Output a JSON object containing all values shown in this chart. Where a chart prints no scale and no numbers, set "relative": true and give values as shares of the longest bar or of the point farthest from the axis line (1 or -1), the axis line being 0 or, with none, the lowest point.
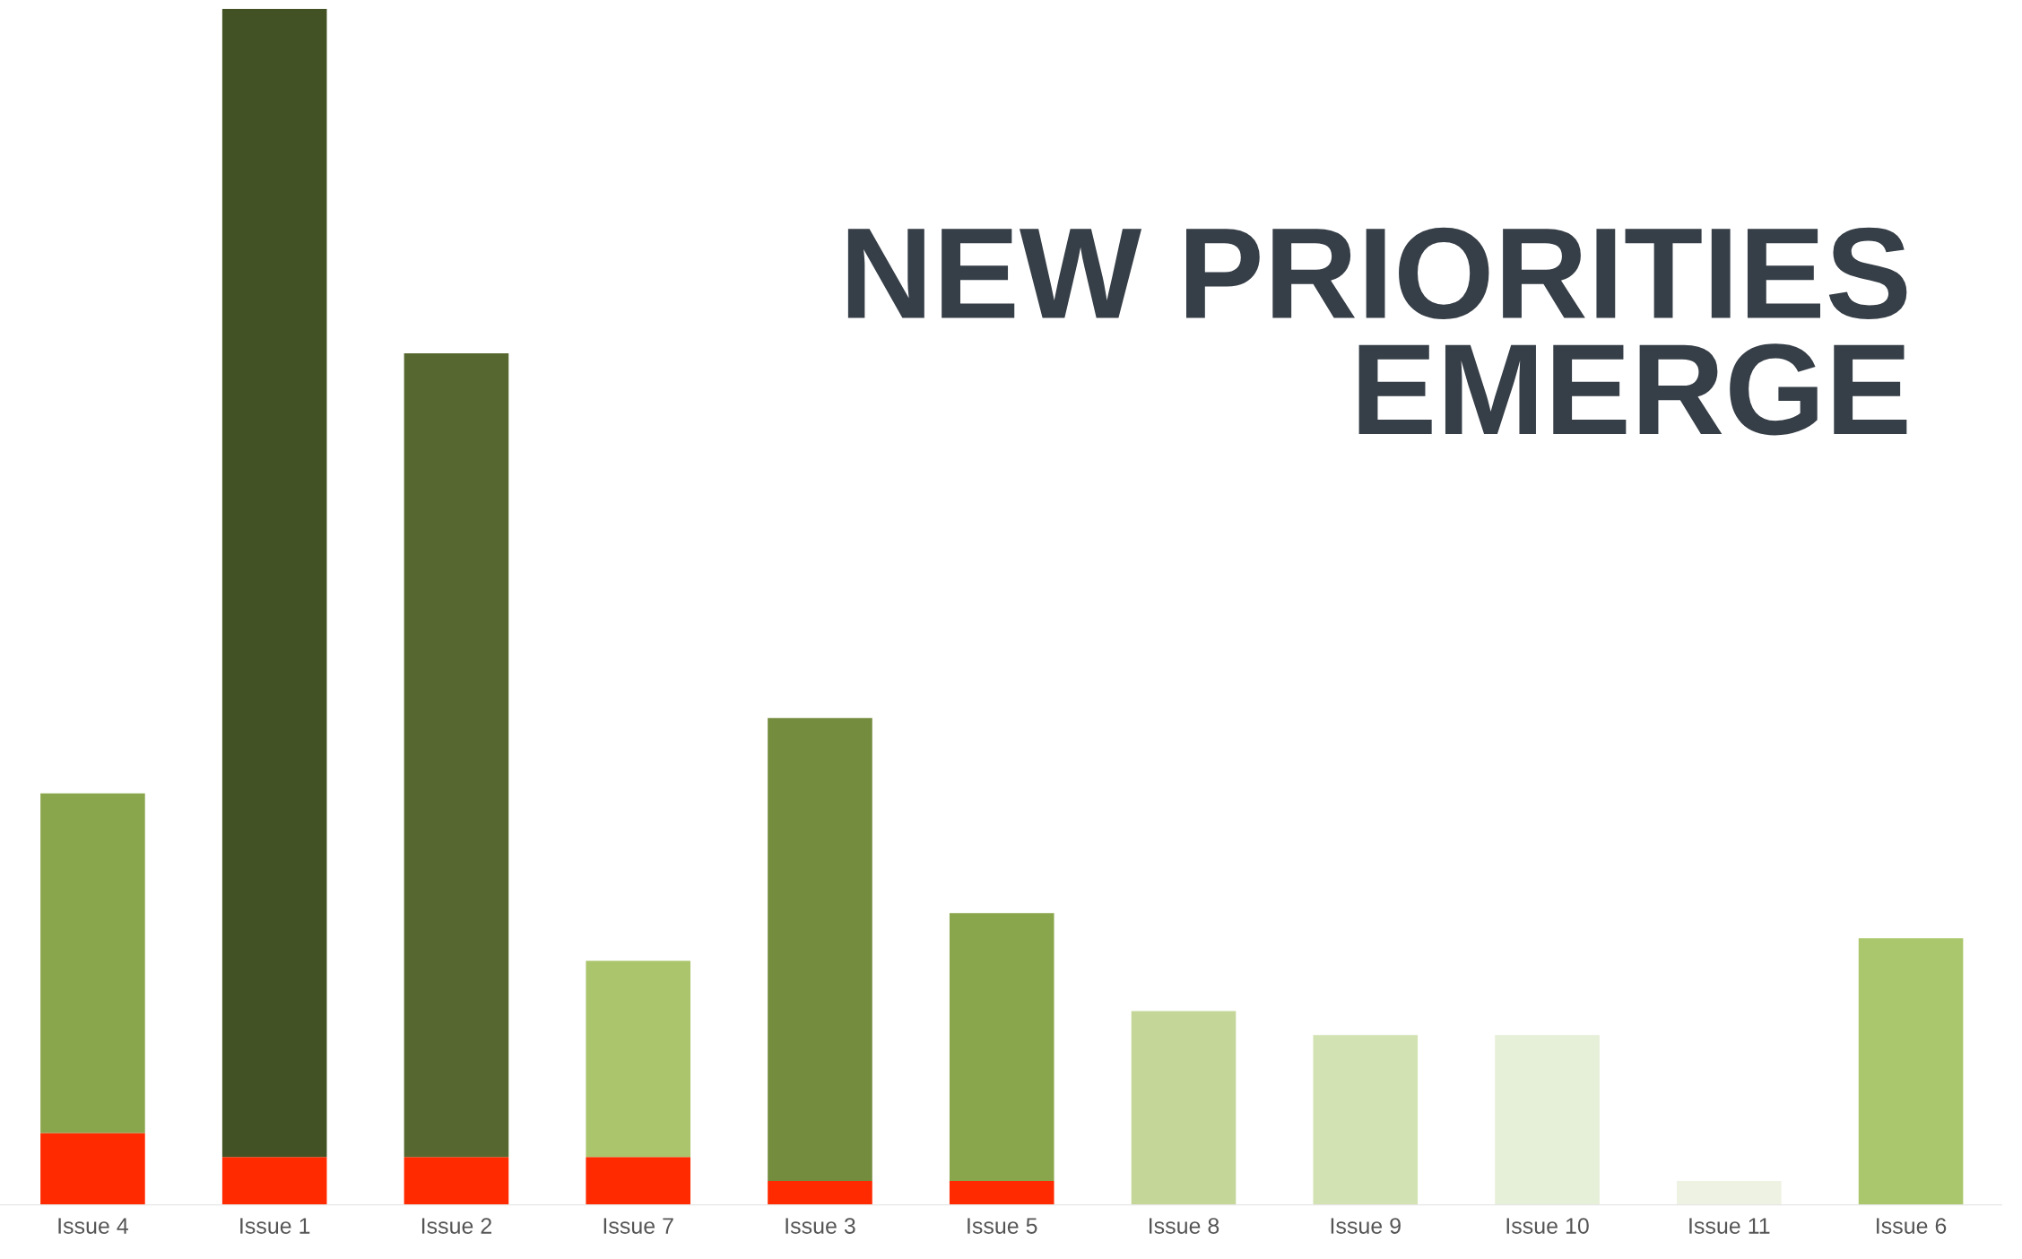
{
  "chart_data": {
    "type": "bar",
    "title": "NEW PRIORITIES\nEMERGE",
    "relative": true,
    "stacked": true,
    "grid": false,
    "legend": false,
    "categories": [
      "Issue 4",
      "Issue 1",
      "Issue 2",
      "Issue 7",
      "Issue 3",
      "Issue 5",
      "Issue 8",
      "Issue 9",
      "Issue 10",
      "Issue 11",
      "Issue 6"
    ],
    "series": [
      {
        "color": "#ff2a00",
        "values": [
          0.06,
          0.04,
          0.04,
          0.04,
          0.02,
          0.02,
          null,
          null,
          null,
          null,
          null
        ]
      },
      {
        "colors": [
          "#8aa64c",
          "#435224",
          "#56682f",
          "#abc56c",
          "#748c3e",
          "#8aa64c",
          "#c4d799",
          "#d3e2b3",
          "#e6efd8",
          "#eef2e2",
          "#abc76e"
        ],
        "values": [
          0.284,
          0.96,
          0.672,
          0.164,
          0.387,
          0.224,
          0.162,
          0.142,
          0.142,
          0.02,
          0.223
        ]
      }
    ]
  }
}
